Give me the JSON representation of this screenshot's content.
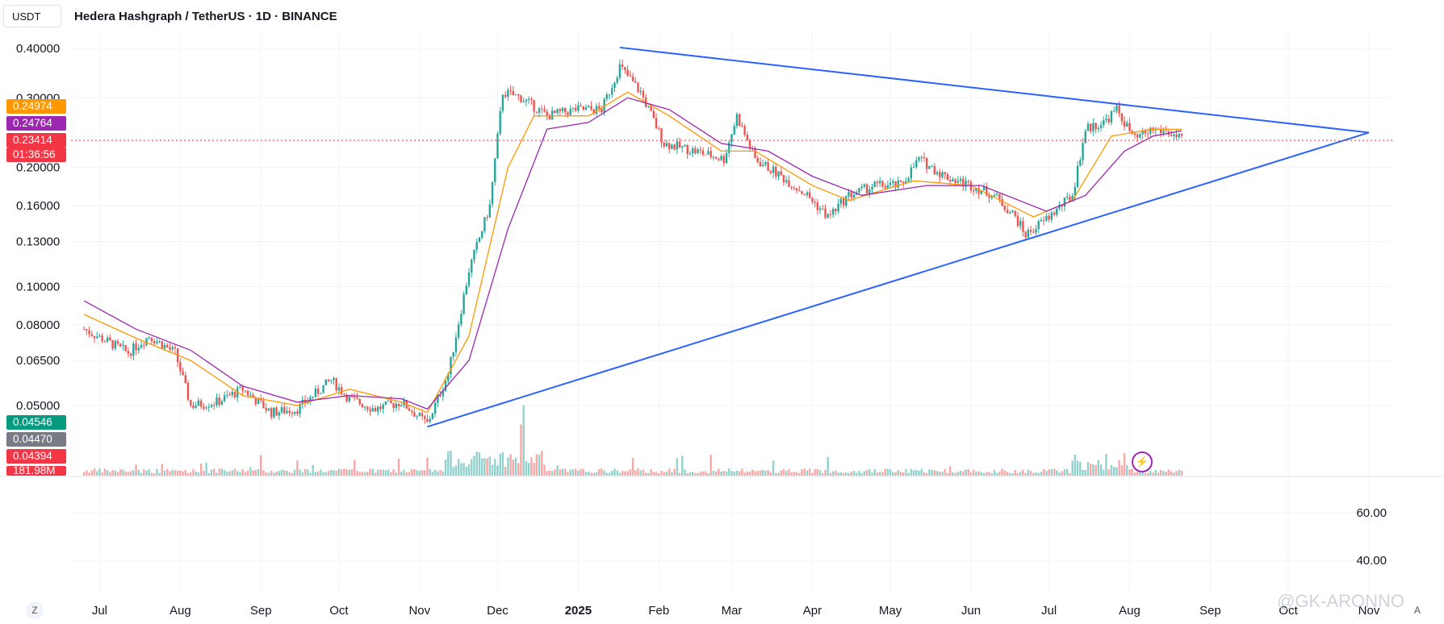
{
  "header": {
    "currency": "USDT",
    "title": "Hedera Hashgraph / TetherUS · 1D · BINANCE"
  },
  "price_tags": {
    "ma_orange": "0.24974",
    "ma_purple": "0.24764",
    "last_price": "0.23414",
    "countdown": "01:36:56",
    "vol_green": "0.04546",
    "vol_gray": "0.04470",
    "vol_red": "0.04394",
    "volume": "181.98M"
  },
  "controls": {
    "zoom": "Z",
    "auto": "A"
  },
  "watermark": "@GK-ARONNO",
  "colors": {
    "up": "#26a69a",
    "down": "#ef5350",
    "ma_fast": "#ff9800",
    "ma_slow": "#9c27b0",
    "trendline": "#2962ff",
    "last_price": "#f23645"
  },
  "chart_data": [
    {
      "type": "candlestick",
      "title": "Hedera Hashgraph / TetherUS · 1D · BINANCE",
      "y_scale": "log",
      "y_ticks": [
        0.4,
        0.3,
        0.2,
        0.16,
        0.13,
        0.1,
        0.08,
        0.065,
        0.05
      ],
      "y_tick_labels": [
        "0.40000",
        "0.30000",
        "0.20000",
        "0.16000",
        "0.13000",
        "0.10000",
        "0.08000",
        "0.06500",
        "0.05000"
      ],
      "x_ticks": [
        "Jul",
        "Aug",
        "Sep",
        "Oct",
        "Nov",
        "Dec",
        "2025",
        "Feb",
        "Mar",
        "Apr",
        "May",
        "Jun",
        "Jul",
        "Aug",
        "Sep",
        "Oct",
        "Nov"
      ],
      "last_price": 0.23414,
      "series": [
        {
          "name": "Close",
          "points": [
            [
              "2024-06-25",
              0.078
            ],
            [
              "2024-07-05",
              0.072
            ],
            [
              "2024-07-12",
              0.068
            ],
            [
              "2024-07-20",
              0.075
            ],
            [
              "2024-07-30",
              0.068
            ],
            [
              "2024-08-05",
              0.05
            ],
            [
              "2024-08-15",
              0.051
            ],
            [
              "2024-08-25",
              0.055
            ],
            [
              "2024-09-05",
              0.048
            ],
            [
              "2024-09-15",
              0.049
            ],
            [
              "2024-09-28",
              0.058
            ],
            [
              "2024-10-05",
              0.052
            ],
            [
              "2024-10-15",
              0.049
            ],
            [
              "2024-10-25",
              0.051
            ],
            [
              "2024-11-04",
              0.045
            ],
            [
              "2024-11-12",
              0.06
            ],
            [
              "2024-11-20",
              0.11
            ],
            [
              "2024-11-28",
              0.16
            ],
            [
              "2024-12-03",
              0.31
            ],
            [
              "2024-12-10",
              0.3
            ],
            [
              "2024-12-20",
              0.27
            ],
            [
              "2024-12-31",
              0.28
            ],
            [
              "2025-01-10",
              0.28
            ],
            [
              "2025-01-17",
              0.36
            ],
            [
              "2025-01-25",
              0.31
            ],
            [
              "2025-02-03",
              0.23
            ],
            [
              "2025-02-15",
              0.22
            ],
            [
              "2025-02-26",
              0.21
            ],
            [
              "2025-03-03",
              0.27
            ],
            [
              "2025-03-10",
              0.21
            ],
            [
              "2025-03-20",
              0.19
            ],
            [
              "2025-03-30",
              0.17
            ],
            [
              "2025-04-07",
              0.15
            ],
            [
              "2025-04-15",
              0.17
            ],
            [
              "2025-04-25",
              0.18
            ],
            [
              "2025-05-05",
              0.18
            ],
            [
              "2025-05-12",
              0.21
            ],
            [
              "2025-05-22",
              0.19
            ],
            [
              "2025-06-01",
              0.18
            ],
            [
              "2025-06-10",
              0.17
            ],
            [
              "2025-06-18",
              0.15
            ],
            [
              "2025-06-22",
              0.135
            ],
            [
              "2025-07-01",
              0.15
            ],
            [
              "2025-07-10",
              0.17
            ],
            [
              "2025-07-15",
              0.25
            ],
            [
              "2025-07-22",
              0.26
            ],
            [
              "2025-07-27",
              0.28
            ],
            [
              "2025-08-03",
              0.235
            ],
            [
              "2025-08-10",
              0.25
            ],
            [
              "2025-08-16",
              0.245
            ],
            [
              "2025-08-21",
              0.2341
            ]
          ]
        },
        {
          "name": "MA fast",
          "color": "#ff9800",
          "points": [
            [
              "2024-06-25",
              0.085
            ],
            [
              "2024-07-15",
              0.074
            ],
            [
              "2024-08-05",
              0.065
            ],
            [
              "2024-08-25",
              0.053
            ],
            [
              "2024-09-15",
              0.05
            ],
            [
              "2024-10-05",
              0.055
            ],
            [
              "2024-10-25",
              0.051
            ],
            [
              "2024-11-04",
              0.048
            ],
            [
              "2024-11-20",
              0.075
            ],
            [
              "2024-12-05",
              0.2
            ],
            [
              "2024-12-15",
              0.27
            ],
            [
              "2025-01-05",
              0.27
            ],
            [
              "2025-01-20",
              0.31
            ],
            [
              "2025-02-05",
              0.27
            ],
            [
              "2025-02-25",
              0.22
            ],
            [
              "2025-03-10",
              0.22
            ],
            [
              "2025-04-01",
              0.18
            ],
            [
              "2025-04-15",
              0.165
            ],
            [
              "2025-05-10",
              0.185
            ],
            [
              "2025-06-01",
              0.18
            ],
            [
              "2025-06-25",
              0.15
            ],
            [
              "2025-07-10",
              0.165
            ],
            [
              "2025-07-25",
              0.24
            ],
            [
              "2025-08-10",
              0.25
            ],
            [
              "2025-08-21",
              0.2497
            ]
          ]
        },
        {
          "name": "MA slow",
          "color": "#9c27b0",
          "points": [
            [
              "2024-06-25",
              0.092
            ],
            [
              "2024-07-15",
              0.078
            ],
            [
              "2024-08-05",
              0.069
            ],
            [
              "2024-08-25",
              0.056
            ],
            [
              "2024-09-15",
              0.051
            ],
            [
              "2024-10-05",
              0.053
            ],
            [
              "2024-10-25",
              0.052
            ],
            [
              "2024-11-04",
              0.049
            ],
            [
              "2024-11-20",
              0.065
            ],
            [
              "2024-12-05",
              0.14
            ],
            [
              "2024-12-20",
              0.25
            ],
            [
              "2025-01-05",
              0.26
            ],
            [
              "2025-01-20",
              0.3
            ],
            [
              "2025-02-05",
              0.28
            ],
            [
              "2025-02-25",
              0.23
            ],
            [
              "2025-03-15",
              0.22
            ],
            [
              "2025-04-01",
              0.19
            ],
            [
              "2025-04-20",
              0.17
            ],
            [
              "2025-05-15",
              0.18
            ],
            [
              "2025-06-05",
              0.18
            ],
            [
              "2025-06-30",
              0.155
            ],
            [
              "2025-07-15",
              0.17
            ],
            [
              "2025-07-30",
              0.22
            ],
            [
              "2025-08-10",
              0.24
            ],
            [
              "2025-08-21",
              0.2476
            ]
          ]
        },
        {
          "name": "Trendline upper",
          "color": "#2962ff",
          "points": [
            [
              "2025-01-17",
              0.402
            ],
            [
              "2025-11-01",
              0.245
            ]
          ]
        },
        {
          "name": "Trendline lower",
          "color": "#2962ff",
          "points": [
            [
              "2024-11-04",
              0.0442
            ],
            [
              "2025-11-01",
              0.245
            ]
          ]
        }
      ]
    },
    {
      "type": "bar",
      "title": "Volume",
      "last_volume": "181.98M",
      "y_ticks": [
        60,
        40
      ],
      "y_tick_labels": [
        "60.00",
        "40.00"
      ]
    }
  ]
}
